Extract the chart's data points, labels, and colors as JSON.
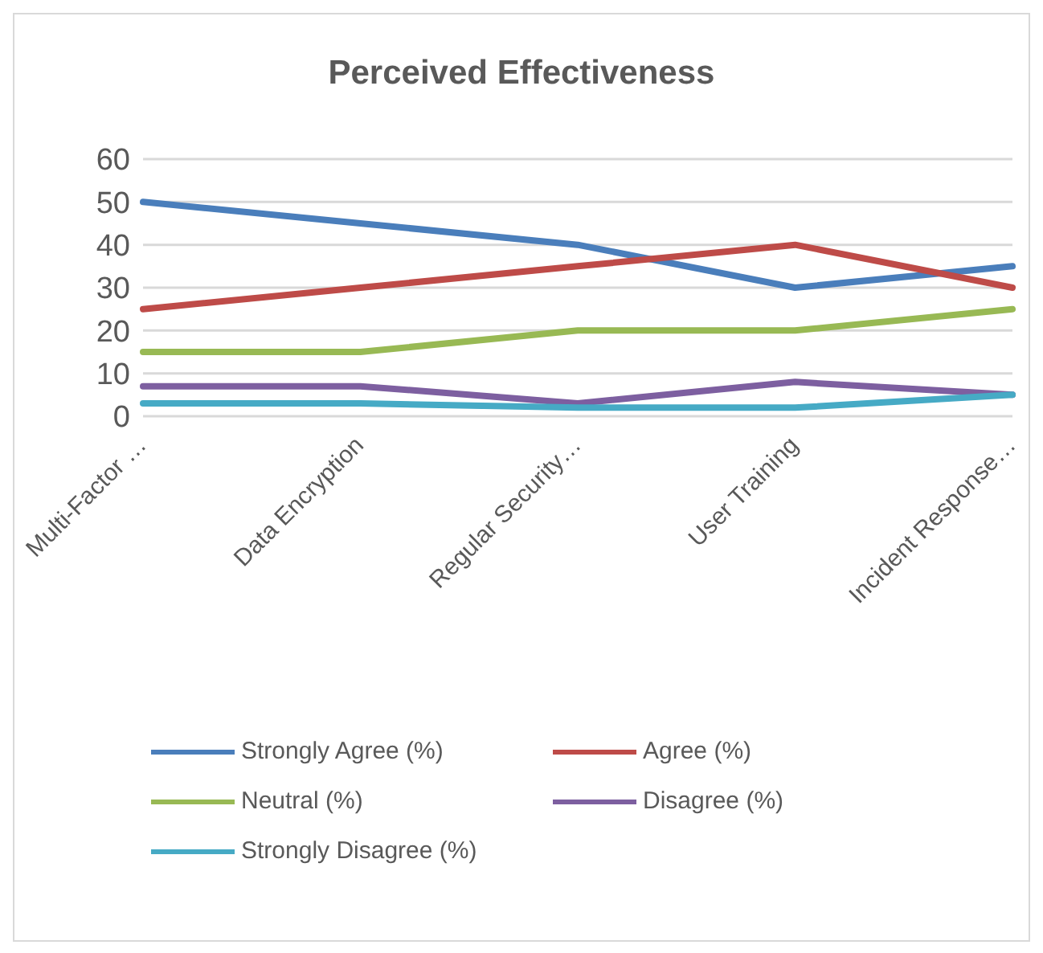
{
  "chart_data": {
    "type": "line",
    "title": "Perceived Effectiveness",
    "categories": [
      "Multi-Factor …",
      "Data Encryption",
      "Regular Security…",
      "User Training",
      "Incident Response…"
    ],
    "series": [
      {
        "name": "Strongly Agree (%)",
        "color": "#4a7ebb",
        "values": [
          50,
          45,
          40,
          30,
          35
        ]
      },
      {
        "name": "Agree (%)",
        "color": "#be4b48",
        "values": [
          25,
          30,
          35,
          40,
          30
        ]
      },
      {
        "name": "Neutral (%)",
        "color": "#98b954",
        "values": [
          15,
          15,
          20,
          20,
          25
        ]
      },
      {
        "name": "Disagree (%)",
        "color": "#7d5fa0",
        "values": [
          7,
          7,
          3,
          8,
          5
        ]
      },
      {
        "name": "Strongly Disagree (%)",
        "color": "#46aac5",
        "values": [
          3,
          3,
          2,
          2,
          5
        ]
      }
    ],
    "ylim": [
      0,
      60
    ],
    "yticks": [
      0,
      10,
      20,
      30,
      40,
      50,
      60
    ],
    "grid": "y",
    "legend": "bottom",
    "marker": "none",
    "line_style": "solid"
  }
}
